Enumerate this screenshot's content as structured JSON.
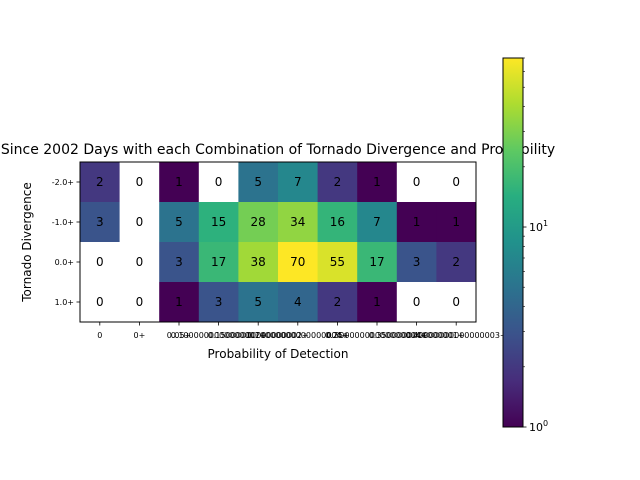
{
  "chart_data": {
    "type": "heatmap",
    "title": "Since 2002 Days with each Combination of Tornado Divergence and Probability",
    "xlabel": "Probability of Detection",
    "ylabel": "Tornado Divergence",
    "x_tick_labels": [
      "0",
      "0+",
      "0.05+",
      "0.1+",
      "0.15+",
      "0.2+",
      "0.25+",
      "0.3+",
      "0.35+",
      "0.4+"
    ],
    "x_tick_labels_as_rendered": [
      "0",
      "0+",
      "0.05+",
      "0.1000000000000001+",
      "0.15000000000000002+",
      "0.20000000000000004+",
      "0.25+",
      "0.30000000000000004+",
      "0.3500000000000001+",
      "0.40000000000000003+"
    ],
    "y_tick_labels": [
      "-2.0+",
      "-1.0+",
      "0.0+",
      "1.0+"
    ],
    "values": [
      [
        2,
        0,
        1,
        0,
        5,
        7,
        2,
        1,
        0,
        0
      ],
      [
        3,
        0,
        5,
        15,
        28,
        34,
        16,
        7,
        1,
        1
      ],
      [
        0,
        0,
        3,
        17,
        38,
        70,
        55,
        17,
        3,
        2
      ],
      [
        0,
        0,
        1,
        3,
        5,
        4,
        2,
        1,
        0,
        0
      ]
    ],
    "colorbar": {
      "scale": "log",
      "colormap": "viridis",
      "range": [
        1,
        70
      ],
      "tick_labels": [
        "10^0",
        "10^1"
      ],
      "zero_color": "#ffffff"
    },
    "grid": false,
    "legend": "none"
  }
}
